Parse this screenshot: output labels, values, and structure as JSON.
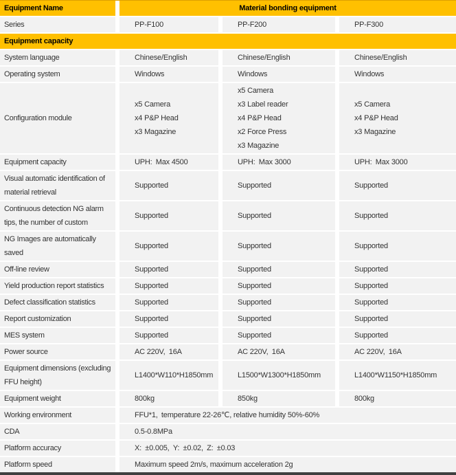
{
  "colors": {
    "accent_gold": "#FFC000",
    "row_background": "#F2F2F2",
    "grid_separator": "#FFFFFF",
    "bottom_border": "#404040",
    "body_text": "#333333",
    "header_text": "#000000"
  },
  "header": {
    "label": "Equipment Name",
    "value": "Material bonding equipment"
  },
  "rows": [
    {
      "type": "data",
      "label": "Series",
      "values": [
        "PP-F100",
        "PP-F200",
        "PP-F300"
      ]
    },
    {
      "type": "section",
      "label": "Equipment capacity"
    },
    {
      "type": "data",
      "label": "System language",
      "values": [
        "Chinese/English",
        "Chinese/English",
        "Chinese/English"
      ]
    },
    {
      "type": "data",
      "label": "Operating system",
      "values": [
        "Windows",
        "Windows",
        "Windows"
      ]
    },
    {
      "type": "data",
      "label": "Configuration module",
      "values_multiline": [
        [
          "x5 Camera",
          "x4 P&P Head",
          "x3 Magazine"
        ],
        [
          "x5 Camera",
          "x3 Label reader",
          "x4 P&P Head",
          "x2 Force Press",
          "x3 Magazine"
        ],
        [
          "x5 Camera",
          "x4 P&P Head",
          "x3 Magazine"
        ]
      ]
    },
    {
      "type": "data",
      "label": "Equipment capacity",
      "values": [
        "UPH: Max 4500",
        "UPH: Max 3000",
        "UPH: Max 3000"
      ]
    },
    {
      "type": "data",
      "label": "Visual automatic identification of material retrieval",
      "values": [
        "Supported",
        "Supported",
        "Supported"
      ]
    },
    {
      "type": "data",
      "label": "Continuous detection NG alarm tips, the number of custom",
      "values": [
        "Supported",
        "Supported",
        "Supported"
      ]
    },
    {
      "type": "data",
      "label": "NG Images are automatically saved",
      "values": [
        "Supported",
        "Supported",
        "Supported"
      ]
    },
    {
      "type": "data",
      "label": "Off-line review",
      "values": [
        "Supported",
        "Supported",
        "Supported"
      ]
    },
    {
      "type": "data",
      "label": "Yield production report statistics",
      "values": [
        "Supported",
        "Supported",
        "Supported"
      ]
    },
    {
      "type": "data",
      "label": "Defect classification statistics",
      "values": [
        "Supported",
        "Supported",
        "Supported"
      ]
    },
    {
      "type": "data",
      "label": "Report customization",
      "values": [
        "Supported",
        "Supported",
        "Supported"
      ]
    },
    {
      "type": "data",
      "label": "MES system",
      "values": [
        "Supported",
        "Supported",
        "Supported"
      ]
    },
    {
      "type": "data",
      "label": "Power source",
      "values": [
        "AC 220V, 16A",
        "AC 220V, 16A",
        "AC 220V, 16A"
      ]
    },
    {
      "type": "data",
      "label": "Equipment dimensions (excluding FFU height)",
      "values": [
        "L1400*W110*H1850mm",
        "L1500*W1300*H1850mm",
        "L1400*W1150*H1850mm"
      ]
    },
    {
      "type": "data",
      "label": "Equipment weight",
      "values": [
        "800kg",
        "850kg",
        "800kg"
      ]
    },
    {
      "type": "span",
      "label": "Working environment",
      "value": "FFU*1, temperature 22-26℃, relative humidity 50%-60%"
    },
    {
      "type": "span",
      "label": "CDA",
      "value": "0.5-0.8MPa"
    },
    {
      "type": "span",
      "label": "Platform accuracy",
      "value": "X: ±0.005, Y: ±0.02, Z: ±0.03"
    },
    {
      "type": "span",
      "label": "Platform speed",
      "value": "Maximum speed 2m/s, maximum acceleration 2g"
    }
  ]
}
